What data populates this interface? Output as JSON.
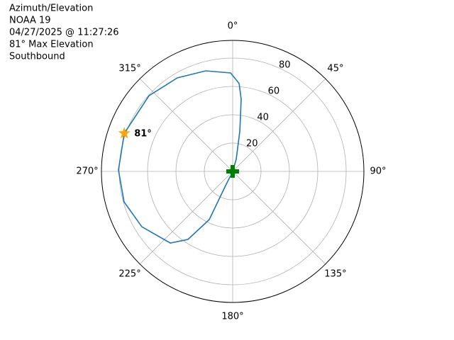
{
  "chart_data": {
    "type": "polar",
    "title_lines": [
      "Azimuth/Elevation",
      "NOAA 19",
      "04/27/2025 @ 11:27:26",
      "81° Max Elevation",
      "Southbound"
    ],
    "theta": [
      0,
      16.4,
      10,
      6.7,
      4.2,
      358.8,
      345,
      329.4,
      312.2,
      289.4,
      270.7,
      254.3,
      238.6,
      221,
      213.3,
      205.9,
      206.6,
      206
    ],
    "values": [
      0,
      8.9,
      29,
      51.4,
      62.2,
      69.5,
      73.5,
      76.7,
      79.6,
      81,
      80.5,
      79.5,
      75,
      67,
      57.4,
      37.8,
      11.2,
      3.4
    ],
    "color": "#1f77b4",
    "max_marker": {
      "theta": 289.4,
      "r": 81,
      "label": "81°",
      "color": "#ffa500"
    },
    "start_marker": {
      "theta": 0,
      "r": 0,
      "color": "#008000"
    },
    "rlim": [
      0,
      92.5
    ],
    "rticks": [
      20,
      40,
      60,
      80
    ],
    "rlabel_position": 22.5,
    "thetaticks": [
      {
        "value": 0,
        "label": "0°"
      },
      {
        "value": 45,
        "label": "45°"
      },
      {
        "value": 90,
        "label": "90°"
      },
      {
        "value": 135,
        "label": "135°"
      },
      {
        "value": 180,
        "label": "180°"
      },
      {
        "value": 225,
        "label": "225°"
      },
      {
        "value": 270,
        "label": "270°"
      },
      {
        "value": 315,
        "label": "315°"
      }
    ],
    "grid": true
  }
}
